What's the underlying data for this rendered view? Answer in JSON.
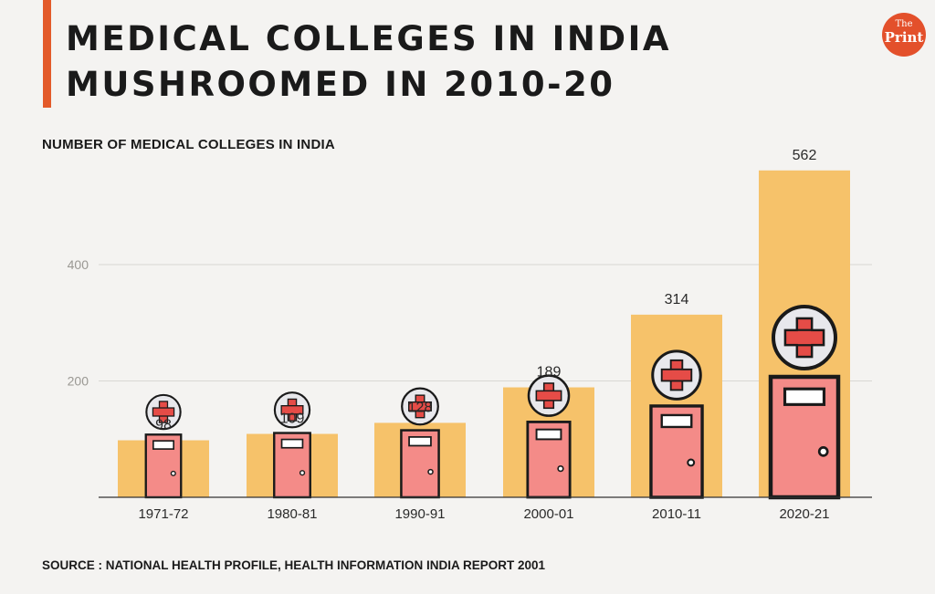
{
  "header": {
    "title": "MEDICAL COLLEGES IN INDIA MUSHROOMED IN 2010-20",
    "logo_line1": "The",
    "logo_line2": "Print"
  },
  "footer": {
    "source": "SOURCE : NATIONAL HEALTH PROFILE, HEALTH INFORMATION INDIA REPORT 2001"
  },
  "colors": {
    "accent": "#e35a2a",
    "bar": "#f6c26a",
    "door": "#f48b88",
    "cross": "#e54c47",
    "badge": "#e8e8ec",
    "outline": "#1a1a1a"
  },
  "chart_data": {
    "type": "bar",
    "title": "NUMBER OF MEDICAL COLLEGES IN INDIA",
    "xlabel": "",
    "ylabel": "",
    "categories": [
      "1971-72",
      "1980-81",
      "1990-91",
      "2000-01",
      "2010-11",
      "2020-21"
    ],
    "values": [
      98,
      109,
      128,
      189,
      314,
      562
    ],
    "yticks": [
      200,
      400
    ],
    "ylim": [
      0,
      600
    ],
    "grid": true,
    "data_labels": true
  }
}
